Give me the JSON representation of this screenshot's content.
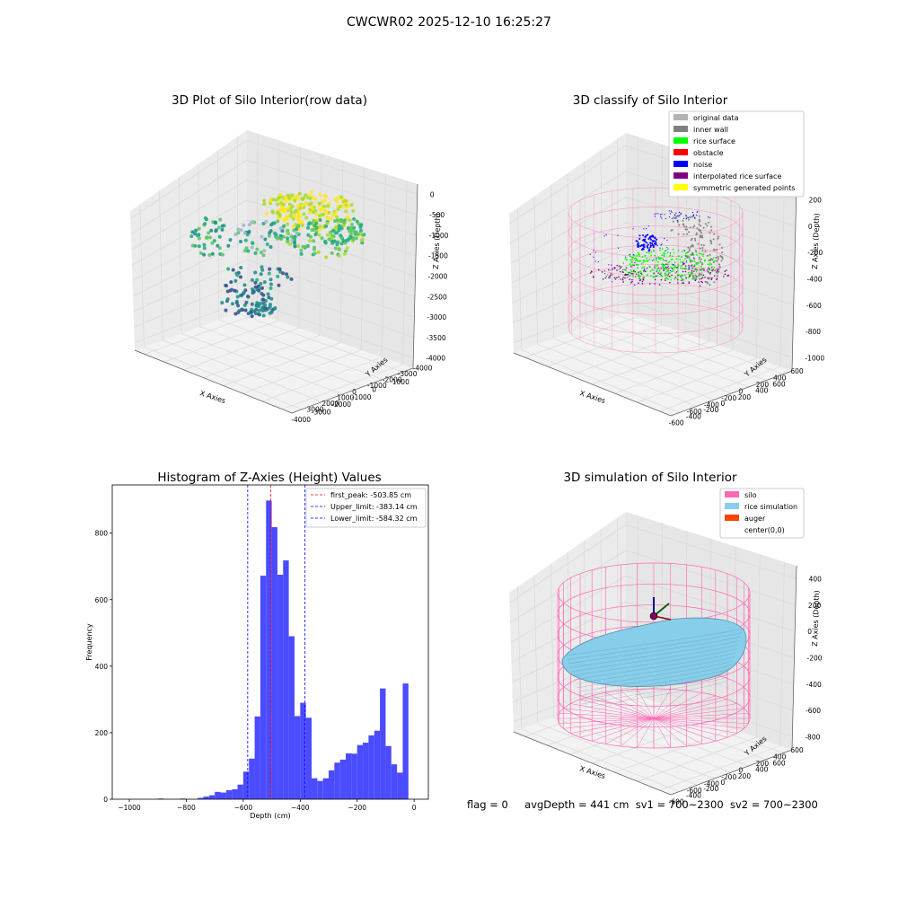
{
  "figure": {
    "suptitle": "CWCWR02 2025-12-10 16:25:27",
    "footer": {
      "flag": "flag = 0",
      "avg": "avgDepth = 441 cm",
      "sv1": "sv1 = 700~2300",
      "sv2": "sv2 = 700~2300"
    }
  },
  "chart_data": [
    {
      "type": "scatter",
      "projection": "3d",
      "title": "3D Plot of Silo Interior(row data)",
      "xlabel": "X Axies",
      "ylabel": "Y Axies",
      "zlabel": "Z Axies (Depth)",
      "x_ticks": [
        "-4000",
        "-3000",
        "-2000",
        "-1000",
        "0",
        "1000"
      ],
      "y_ticks": [
        "-4000",
        "-3000",
        "-2000",
        "-1000",
        "0",
        "1000",
        "2000",
        "3000"
      ],
      "z_ticks": [
        "0",
        "-500",
        "-1000",
        "-1500",
        "-2000",
        "-2500",
        "-3000",
        "-3500",
        "-4000"
      ],
      "colormap": "viridis",
      "grid": true
    },
    {
      "type": "scatter",
      "projection": "3d",
      "title": "3D classify of Silo Interior",
      "xlabel": "X Axies",
      "ylabel": "Y Axies",
      "zlabel": "Z Axies (Depth)",
      "x_ticks": [
        "-600",
        "-400",
        "-200",
        "0",
        "200",
        "400",
        "600"
      ],
      "y_ticks": [
        "-600",
        "-400",
        "-200",
        "0",
        "200",
        "400",
        "600"
      ],
      "z_ticks": [
        "200",
        "0",
        "-200",
        "-400",
        "-600",
        "-800",
        "-1000"
      ],
      "legend_position": "top-right",
      "legend": [
        {
          "label": "original data",
          "color": "#b3b3b3"
        },
        {
          "label": "inner wall",
          "color": "#808080"
        },
        {
          "label": "rice surface",
          "color": "#00ff00"
        },
        {
          "label": "obstacle",
          "color": "#ff0000"
        },
        {
          "label": "noise",
          "color": "#0000ff"
        },
        {
          "label": "interpolated rice surface",
          "color": "#800080"
        },
        {
          "label": "symmetric generated points",
          "color": "#ffff00"
        }
      ],
      "silo_color": "#ff69b4",
      "grid": true
    },
    {
      "type": "bar",
      "title": "Histogram of Z-Axies (Height) Values",
      "xlabel": "Depth (cm)",
      "ylabel": "Frequency",
      "xlim": [
        -1060,
        50
      ],
      "ylim": [
        0,
        945
      ],
      "x_ticks": [
        -1000,
        -800,
        -600,
        -400,
        -200,
        0
      ],
      "y_ticks": [
        0,
        200,
        400,
        600,
        800
      ],
      "bar_color": "#4b4bff",
      "bin_width": 20,
      "bins": [
        {
          "left": -900,
          "count": 2
        },
        {
          "left": -820,
          "count": 2
        },
        {
          "left": -760,
          "count": 4
        },
        {
          "left": -740,
          "count": 8
        },
        {
          "left": -720,
          "count": 12
        },
        {
          "left": -700,
          "count": 22
        },
        {
          "left": -680,
          "count": 20
        },
        {
          "left": -660,
          "count": 27
        },
        {
          "left": -640,
          "count": 30
        },
        {
          "left": -620,
          "count": 44
        },
        {
          "left": -600,
          "count": 83
        },
        {
          "left": -580,
          "count": 122
        },
        {
          "left": -560,
          "count": 249
        },
        {
          "left": -540,
          "count": 672
        },
        {
          "left": -520,
          "count": 898
        },
        {
          "left": -500,
          "count": 818
        },
        {
          "left": -480,
          "count": 675
        },
        {
          "left": -460,
          "count": 718
        },
        {
          "left": -440,
          "count": 490
        },
        {
          "left": -420,
          "count": 250
        },
        {
          "left": -400,
          "count": 290
        },
        {
          "left": -380,
          "count": 245
        },
        {
          "left": -360,
          "count": 63
        },
        {
          "left": -340,
          "count": 55
        },
        {
          "left": -320,
          "count": 63
        },
        {
          "left": -300,
          "count": 87
        },
        {
          "left": -280,
          "count": 110
        },
        {
          "left": -260,
          "count": 119
        },
        {
          "left": -240,
          "count": 138
        },
        {
          "left": -220,
          "count": 137
        },
        {
          "left": -200,
          "count": 163
        },
        {
          "left": -180,
          "count": 170
        },
        {
          "left": -160,
          "count": 192
        },
        {
          "left": -140,
          "count": 206
        },
        {
          "left": -120,
          "count": 333
        },
        {
          "left": -100,
          "count": 160
        },
        {
          "left": -80,
          "count": 105
        },
        {
          "left": -60,
          "count": 80
        },
        {
          "left": -40,
          "count": 348
        }
      ],
      "vlines": [
        {
          "name": "first_peak: -503.85 cm",
          "x": -503.85,
          "color": "#ff0000"
        },
        {
          "name": "Upper_limit: -383.14 cm",
          "x": -383.14,
          "color": "#0000ff"
        },
        {
          "name": "Lower_limit: -584.32 cm",
          "x": -584.32,
          "color": "#0000ff"
        }
      ],
      "legend_position": "top-right",
      "grid": false
    },
    {
      "type": "surface",
      "projection": "3d",
      "title": "3D simulation of Silo Interior",
      "xlabel": "X Axies",
      "ylabel": "Y Axies",
      "zlabel": "Z Axies (Depth)",
      "x_ticks": [
        "-600",
        "-400",
        "-200",
        "0",
        "200",
        "400",
        "600"
      ],
      "y_ticks": [
        "-600",
        "-400",
        "-200",
        "0",
        "200",
        "400",
        "600"
      ],
      "z_ticks": [
        "400",
        "200",
        "0",
        "-200",
        "-400",
        "-600",
        "-800"
      ],
      "legend_position": "top-right",
      "legend": [
        {
          "label": "silo",
          "color": "#ff69b4"
        },
        {
          "label": "rice simulation",
          "color": "#87ceeb"
        },
        {
          "label": "auger",
          "color": "#ff4500"
        },
        {
          "label": "center(0,0)",
          "color": ""
        }
      ],
      "grid": true
    }
  ]
}
